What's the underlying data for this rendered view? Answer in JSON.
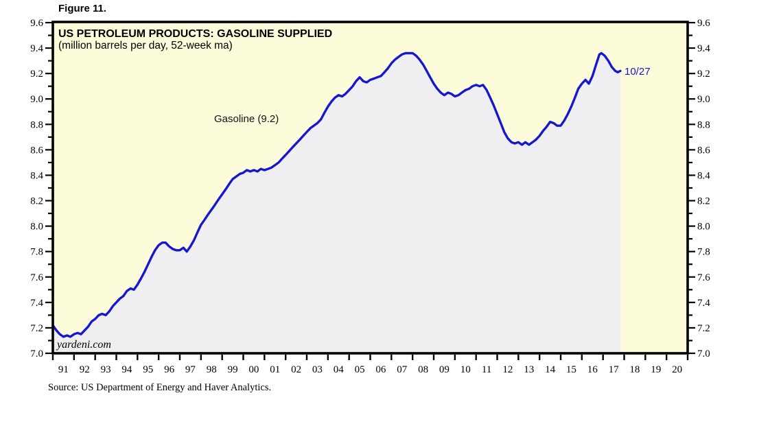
{
  "figure_label": "Figure 11.",
  "watermark": "yardeni.com",
  "source_note": "Source: US Department of Energy and Haver Analytics.",
  "colors": {
    "line": "#1717CE",
    "annotation_blue": "#1717CE",
    "area_fill": "#EFEFF2",
    "plot_background": "#FCFBDA",
    "axis": "#000000",
    "page_background": "#FFFFFF"
  },
  "chart_data": {
    "type": "line",
    "title": "US PETROLEUM PRODUCTS: GASOLINE SUPPLIED",
    "subtitle": "(million barrels per day, 52-week ma)",
    "series_label": "Gasoline (9.2)",
    "end_point_label": "10/27",
    "end_point_value": 9.22,
    "xlim": [
      1991,
      2021
    ],
    "ylim": [
      7.0,
      9.6
    ],
    "ytick_major_step": 0.2,
    "ytick_minor_step": 0.1,
    "grid": false,
    "legend_position": "none",
    "y_tick_labels": [
      "7.0",
      "7.2",
      "7.4",
      "7.6",
      "7.8",
      "8.0",
      "8.2",
      "8.4",
      "8.6",
      "8.8",
      "9.0",
      "9.2",
      "9.4",
      "9.6"
    ],
    "x_tick_labels": [
      "91",
      "92",
      "93",
      "94",
      "95",
      "96",
      "97",
      "98",
      "99",
      "00",
      "01",
      "02",
      "03",
      "04",
      "05",
      "06",
      "07",
      "08",
      "09",
      "10",
      "11",
      "12",
      "13",
      "14",
      "15",
      "16",
      "17",
      "18",
      "19",
      "20"
    ],
    "series": [
      {
        "name": "Gasoline Supplied (52-week moving average)",
        "color_role": "line",
        "points": [
          [
            1991.0,
            7.22
          ],
          [
            1991.17,
            7.18
          ],
          [
            1991.33,
            7.15
          ],
          [
            1991.5,
            7.13
          ],
          [
            1991.67,
            7.14
          ],
          [
            1991.83,
            7.13
          ],
          [
            1992.0,
            7.15
          ],
          [
            1992.17,
            7.16
          ],
          [
            1992.33,
            7.15
          ],
          [
            1992.5,
            7.18
          ],
          [
            1992.67,
            7.21
          ],
          [
            1992.83,
            7.25
          ],
          [
            1993.0,
            7.27
          ],
          [
            1993.17,
            7.3
          ],
          [
            1993.33,
            7.31
          ],
          [
            1993.5,
            7.3
          ],
          [
            1993.67,
            7.33
          ],
          [
            1993.83,
            7.37
          ],
          [
            1994.0,
            7.4
          ],
          [
            1994.17,
            7.43
          ],
          [
            1994.33,
            7.45
          ],
          [
            1994.5,
            7.49
          ],
          [
            1994.67,
            7.51
          ],
          [
            1994.83,
            7.5
          ],
          [
            1995.0,
            7.54
          ],
          [
            1995.17,
            7.59
          ],
          [
            1995.33,
            7.64
          ],
          [
            1995.5,
            7.7
          ],
          [
            1995.67,
            7.76
          ],
          [
            1995.83,
            7.81
          ],
          [
            1996.0,
            7.85
          ],
          [
            1996.17,
            7.87
          ],
          [
            1996.33,
            7.87
          ],
          [
            1996.5,
            7.84
          ],
          [
            1996.67,
            7.82
          ],
          [
            1996.83,
            7.81
          ],
          [
            1997.0,
            7.81
          ],
          [
            1997.17,
            7.83
          ],
          [
            1997.33,
            7.8
          ],
          [
            1997.5,
            7.84
          ],
          [
            1997.67,
            7.89
          ],
          [
            1997.83,
            7.95
          ],
          [
            1998.0,
            8.01
          ],
          [
            1998.17,
            8.05
          ],
          [
            1998.33,
            8.09
          ],
          [
            1998.5,
            8.13
          ],
          [
            1998.67,
            8.17
          ],
          [
            1998.83,
            8.21
          ],
          [
            1999.0,
            8.25
          ],
          [
            1999.17,
            8.29
          ],
          [
            1999.33,
            8.33
          ],
          [
            1999.5,
            8.37
          ],
          [
            1999.67,
            8.39
          ],
          [
            1999.83,
            8.41
          ],
          [
            2000.0,
            8.42
          ],
          [
            2000.17,
            8.44
          ],
          [
            2000.33,
            8.43
          ],
          [
            2000.5,
            8.44
          ],
          [
            2000.67,
            8.43
          ],
          [
            2000.83,
            8.45
          ],
          [
            2001.0,
            8.44
          ],
          [
            2001.17,
            8.45
          ],
          [
            2001.33,
            8.46
          ],
          [
            2001.5,
            8.48
          ],
          [
            2001.67,
            8.5
          ],
          [
            2001.83,
            8.53
          ],
          [
            2002.0,
            8.56
          ],
          [
            2002.17,
            8.59
          ],
          [
            2002.33,
            8.62
          ],
          [
            2002.5,
            8.65
          ],
          [
            2002.67,
            8.68
          ],
          [
            2002.83,
            8.71
          ],
          [
            2003.0,
            8.74
          ],
          [
            2003.17,
            8.77
          ],
          [
            2003.33,
            8.79
          ],
          [
            2003.5,
            8.81
          ],
          [
            2003.67,
            8.84
          ],
          [
            2003.83,
            8.89
          ],
          [
            2004.0,
            8.94
          ],
          [
            2004.17,
            8.98
          ],
          [
            2004.33,
            9.01
          ],
          [
            2004.5,
            9.03
          ],
          [
            2004.67,
            9.02
          ],
          [
            2004.83,
            9.04
          ],
          [
            2005.0,
            9.07
          ],
          [
            2005.17,
            9.1
          ],
          [
            2005.33,
            9.14
          ],
          [
            2005.5,
            9.17
          ],
          [
            2005.67,
            9.14
          ],
          [
            2005.83,
            9.13
          ],
          [
            2006.0,
            9.15
          ],
          [
            2006.17,
            9.16
          ],
          [
            2006.33,
            9.17
          ],
          [
            2006.5,
            9.18
          ],
          [
            2006.67,
            9.21
          ],
          [
            2006.83,
            9.24
          ],
          [
            2007.0,
            9.28
          ],
          [
            2007.17,
            9.31
          ],
          [
            2007.33,
            9.33
          ],
          [
            2007.5,
            9.35
          ],
          [
            2007.67,
            9.36
          ],
          [
            2007.83,
            9.36
          ],
          [
            2008.0,
            9.36
          ],
          [
            2008.17,
            9.34
          ],
          [
            2008.33,
            9.31
          ],
          [
            2008.5,
            9.27
          ],
          [
            2008.67,
            9.22
          ],
          [
            2008.83,
            9.17
          ],
          [
            2009.0,
            9.12
          ],
          [
            2009.17,
            9.08
          ],
          [
            2009.33,
            9.05
          ],
          [
            2009.5,
            9.03
          ],
          [
            2009.67,
            9.05
          ],
          [
            2009.83,
            9.04
          ],
          [
            2010.0,
            9.02
          ],
          [
            2010.17,
            9.03
          ],
          [
            2010.33,
            9.05
          ],
          [
            2010.5,
            9.07
          ],
          [
            2010.67,
            9.08
          ],
          [
            2010.83,
            9.1
          ],
          [
            2011.0,
            9.11
          ],
          [
            2011.17,
            9.1
          ],
          [
            2011.33,
            9.11
          ],
          [
            2011.5,
            9.07
          ],
          [
            2011.67,
            9.01
          ],
          [
            2011.83,
            8.95
          ],
          [
            2012.0,
            8.88
          ],
          [
            2012.17,
            8.81
          ],
          [
            2012.33,
            8.74
          ],
          [
            2012.5,
            8.69
          ],
          [
            2012.67,
            8.66
          ],
          [
            2012.83,
            8.65
          ],
          [
            2013.0,
            8.66
          ],
          [
            2013.17,
            8.64
          ],
          [
            2013.33,
            8.66
          ],
          [
            2013.5,
            8.64
          ],
          [
            2013.67,
            8.66
          ],
          [
            2013.83,
            8.68
          ],
          [
            2014.0,
            8.71
          ],
          [
            2014.17,
            8.75
          ],
          [
            2014.33,
            8.78
          ],
          [
            2014.5,
            8.82
          ],
          [
            2014.67,
            8.81
          ],
          [
            2014.83,
            8.79
          ],
          [
            2015.0,
            8.79
          ],
          [
            2015.17,
            8.83
          ],
          [
            2015.33,
            8.88
          ],
          [
            2015.5,
            8.94
          ],
          [
            2015.67,
            9.01
          ],
          [
            2015.83,
            9.08
          ],
          [
            2016.0,
            9.12
          ],
          [
            2016.17,
            9.15
          ],
          [
            2016.33,
            9.12
          ],
          [
            2016.5,
            9.18
          ],
          [
            2016.67,
            9.27
          ],
          [
            2016.83,
            9.35
          ],
          [
            2016.92,
            9.36
          ],
          [
            2017.08,
            9.34
          ],
          [
            2017.25,
            9.3
          ],
          [
            2017.42,
            9.25
          ],
          [
            2017.58,
            9.22
          ],
          [
            2017.7,
            9.21
          ],
          [
            2017.82,
            9.22
          ]
        ]
      }
    ]
  }
}
